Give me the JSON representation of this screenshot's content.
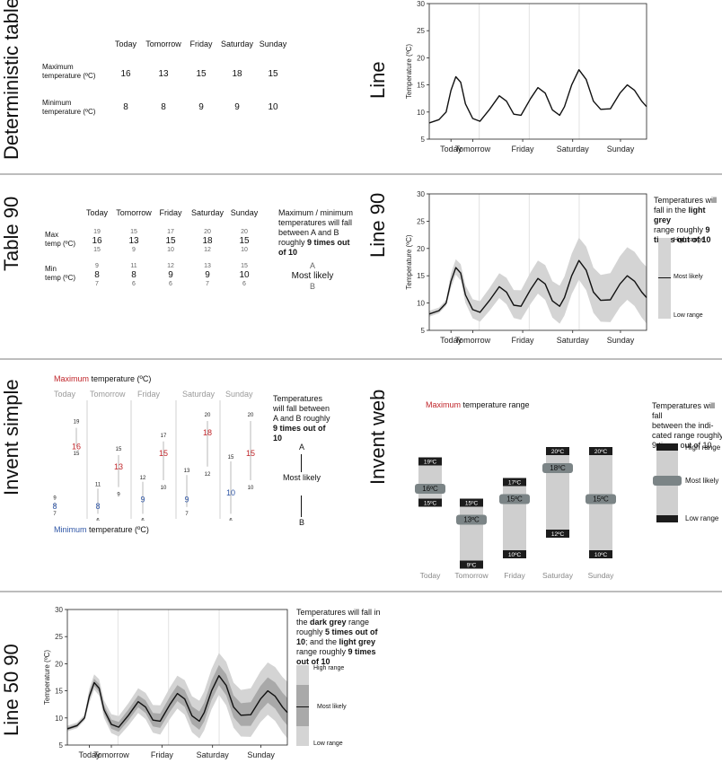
{
  "panels": {
    "deterministic_table": {
      "title": "Deterministic table",
      "days": [
        "Today",
        "Tomorrow",
        "Friday",
        "Saturday",
        "Sunday"
      ],
      "rows": [
        {
          "label_lines": [
            "Maximum",
            "temperature (ºC)"
          ],
          "values": [
            "16",
            "13",
            "15",
            "18",
            "15"
          ]
        },
        {
          "label_lines": [
            "Minimum",
            "temperature (ºC)"
          ],
          "values": [
            "8",
            "8",
            "9",
            "9",
            "10"
          ]
        }
      ]
    },
    "line": {
      "title": "Line",
      "ylabel": "Temperature (ºC)",
      "yticks": [
        "5",
        "10",
        "15",
        "20",
        "25",
        "30"
      ],
      "xlabels": [
        "Today",
        "Tomorrow",
        "Friday",
        "Saturday",
        "Sunday"
      ]
    },
    "table_90": {
      "title": "Table 90",
      "days": [
        "Today",
        "Tomorrow",
        "Friday",
        "Saturday",
        "Sunday"
      ],
      "max_label": [
        "Max",
        "temp (ºC)"
      ],
      "min_label": [
        "Min",
        "temp (ºC)"
      ],
      "max": [
        {
          "hi": "19",
          "mid": "16",
          "lo": "15"
        },
        {
          "hi": "15",
          "mid": "13",
          "lo": "9"
        },
        {
          "hi": "17",
          "mid": "15",
          "lo": "10"
        },
        {
          "hi": "20",
          "mid": "18",
          "lo": "12"
        },
        {
          "hi": "20",
          "mid": "15",
          "lo": "10"
        }
      ],
      "min": [
        {
          "hi": "9",
          "mid": "8",
          "lo": "7"
        },
        {
          "hi": "11",
          "mid": "8",
          "lo": "6"
        },
        {
          "hi": "12",
          "mid": "9",
          "lo": "6"
        },
        {
          "hi": "13",
          "mid": "9",
          "lo": "7"
        },
        {
          "hi": "15",
          "mid": "10",
          "lo": "6"
        }
      ],
      "note_lines": [
        "Maximum / minimum",
        "temperatures will fall",
        "between A and  B"
      ],
      "note_prefix": "roughly ",
      "note_bold": "9 times out",
      "note_bold2": "of 10",
      "key_a": "A",
      "key_mid": "Most likely",
      "key_b": "B"
    },
    "line_90": {
      "title": "Line 90",
      "ylabel": "Temperature (ºC)",
      "yticks": [
        "5",
        "10",
        "15",
        "20",
        "25",
        "30"
      ],
      "xlabels": [
        "Today",
        "Tomorrow",
        "Friday",
        "Saturday",
        "Sunday"
      ],
      "note_line1": "Temperatures will",
      "note_line2": "fall in the ",
      "note_bold_a": "light grey",
      "note_line3": "range roughly ",
      "note_bold_b": "9",
      "note_bold_c": "times out of 10",
      "legend_high": "High range",
      "legend_mid": "Most likely",
      "legend_low": "Low range"
    },
    "invent_simple": {
      "title": "Invent simple",
      "max_word": "Maximum",
      "max_rest": " temperature (ºC)",
      "min_word": "Minimum",
      "min_rest": " temperature (ºC)",
      "days": [
        "Today",
        "Tomorrow",
        "Friday",
        "Saturday",
        "Sunday"
      ],
      "max": [
        {
          "hi": "19",
          "mid": "16",
          "lo": "15"
        },
        {
          "hi": "15",
          "mid": "13",
          "lo": "9"
        },
        {
          "hi": "17",
          "mid": "15",
          "lo": "10"
        },
        {
          "hi": "20",
          "mid": "18",
          "lo": "12"
        },
        {
          "hi": "20",
          "mid": "15",
          "lo": "10"
        }
      ],
      "min": [
        {
          "hi": "9",
          "mid": "8",
          "lo": "7"
        },
        {
          "hi": "11",
          "mid": "8",
          "lo": "6"
        },
        {
          "hi": "12",
          "mid": "9",
          "lo": "6"
        },
        {
          "hi": "13",
          "mid": "9",
          "lo": "7"
        },
        {
          "hi": "15",
          "mid": "10",
          "lo": "6"
        }
      ],
      "note_lines": [
        "Temperatures",
        "will fall between",
        "A and B roughly"
      ],
      "note_bold": "9 times out of",
      "note_end": "10",
      "key_a": "A",
      "key_mid": "Most likely",
      "key_b": "B"
    },
    "invent_web": {
      "title": "Invent web",
      "heading_word": "Maximum",
      "heading_rest": " temperature range",
      "days": [
        "Today",
        "Tomorrow",
        "Friday",
        "Saturday",
        "Sunday"
      ],
      "bars": [
        {
          "hi": "19ºC",
          "mid": "16ºC",
          "lo": "15ºC"
        },
        {
          "hi": "15ºC",
          "mid": "13ºC",
          "lo": "9ºC"
        },
        {
          "hi": "17ºC",
          "mid": "15ºC",
          "lo": "10ºC"
        },
        {
          "hi": "20ºC",
          "mid": "18ºC",
          "lo": "12ºC"
        },
        {
          "hi": "20ºC",
          "mid": "15ºC",
          "lo": "10ºC"
        }
      ],
      "note_lines": [
        "Temperatures will fall",
        "between the indi-",
        "cated range roughly",
        "9 times out of 10"
      ],
      "legend_high": "High range",
      "legend_mid": "Most likely",
      "legend_low": "Low range"
    },
    "line_50_90": {
      "title": "Line 50 90",
      "ylabel": "Temperature (ºC)",
      "yticks": [
        "5",
        "10",
        "15",
        "20",
        "25",
        "30"
      ],
      "xlabels": [
        "Today",
        "Tomorrow",
        "Friday",
        "Saturday",
        "Sunday"
      ],
      "note_line1": "Temperatures will fall in",
      "note_line2": "the ",
      "note_bold_a": "dark grey",
      "note_line2b": " range",
      "note_line3": "roughly ",
      "note_bold_b": "5 times out of",
      "note_bold_c": "10",
      "note_line4": "; and the ",
      "note_bold_d": "light grey",
      "note_line5": "range roughly ",
      "note_bold_e": "9 times",
      "note_bold_f": "out of 10",
      "legend_high": "High range",
      "legend_mid": "Most likely",
      "legend_low": "Low range"
    }
  },
  "colors": {
    "red": "#c0252a",
    "blue": "#2f56a6",
    "light_grey": "#d4d4d4",
    "dark_grey": "#a9a9a9",
    "bar_grey": "#cfcfcf",
    "pill_grey": "#7b8486",
    "separator": "#bdbdbd"
  }
}
